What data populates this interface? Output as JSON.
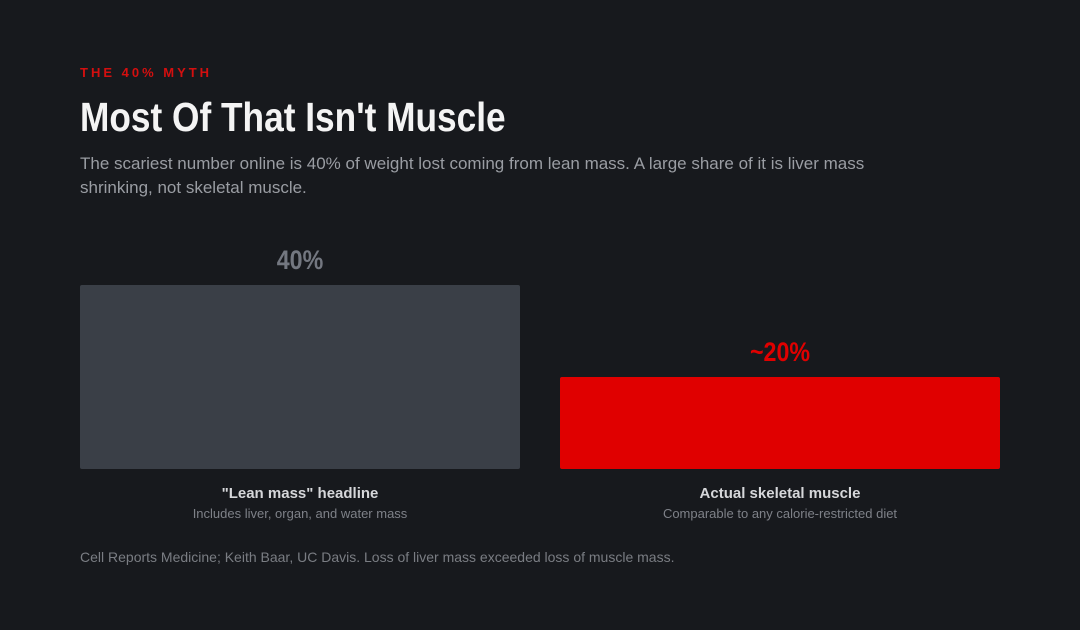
{
  "eyebrow": "THE 40% MYTH",
  "title": "Most Of That Isn't Muscle",
  "subtitle": "The scariest number online is 40% of weight lost coming from lean mass. A large share of it is liver mass shrinking, not skeletal muscle.",
  "source": "Cell Reports Medicine; Keith Baar, UC Davis. Loss of liver mass exceeded loss of muscle mass.",
  "colors": {
    "accent": "#e00000",
    "muted_bar": "#3a3f47",
    "muted_label": "#737780",
    "background": "#17191d"
  },
  "chart_data": {
    "type": "bar",
    "unit": "%",
    "categories": [
      "\"Lean mass\" headline",
      "Actual skeletal muscle"
    ],
    "sublabels": [
      "Includes liver, organ, and water mass",
      "Comparable to any calorie-restricted diet"
    ],
    "values": [
      40,
      20
    ],
    "value_labels": [
      "40%",
      "~20%"
    ],
    "bar_colors": [
      "#3a3f47",
      "#e00000"
    ],
    "label_colors": [
      "#737780",
      "#e00000"
    ],
    "ylim": [
      0,
      40
    ],
    "grid": false
  }
}
